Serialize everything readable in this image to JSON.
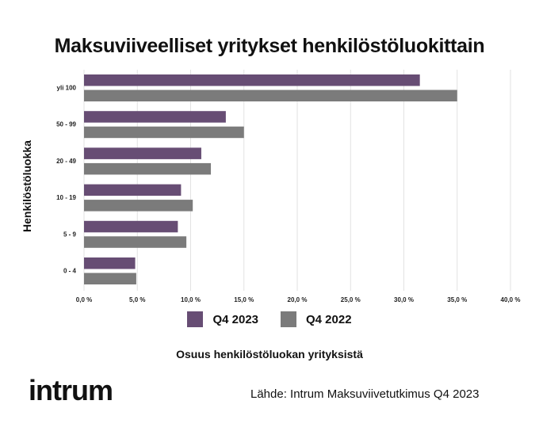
{
  "chart_data": {
    "type": "bar",
    "orientation": "horizontal",
    "title": "Maksuviiveelliset yritykset henkilöstöluokittain",
    "xlabel": "Osuus henkilöstöluokan yrityksistä",
    "ylabel": "Henkilöstöluokka",
    "categories": [
      "yli 100",
      "50 - 99",
      "20 - 49",
      "10 - 19",
      "5 - 9",
      "0 - 4"
    ],
    "series": [
      {
        "name": "Q4 2023",
        "color": "#674d74",
        "values": [
          31.5,
          13.3,
          11.0,
          9.1,
          8.8,
          4.8
        ]
      },
      {
        "name": "Q4 2022",
        "color": "#7b7b7b",
        "values": [
          35.0,
          15.0,
          11.9,
          10.2,
          9.6,
          4.9
        ]
      }
    ],
    "xlim": [
      0,
      40
    ],
    "xticks": [
      "0,0 %",
      "5,0 %",
      "10,0 %",
      "15,0 %",
      "20,0 %",
      "25,0 %",
      "30,0 %",
      "35,0 %",
      "40,0 %"
    ],
    "grid": true,
    "legend": "bottom"
  },
  "logo": "intrum",
  "source": "Lähde: Intrum Maksuviivetutkimus Q4 2023"
}
